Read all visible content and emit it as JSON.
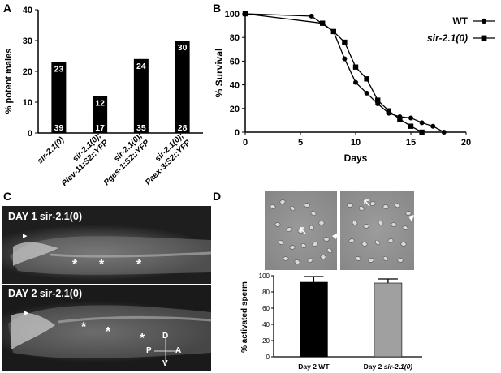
{
  "panels": {
    "a": {
      "letter": "A",
      "chart_data": {
        "type": "bar",
        "ylabel": "% potent males",
        "ylim": [
          0,
          40
        ],
        "yticks": [
          "0",
          "10",
          "20",
          "30",
          "40"
        ],
        "categories": [
          {
            "line1": "sir-2.1(0)",
            "line2": ""
          },
          {
            "line1": "sir-2.1(0);",
            "line2": "Plev-11:S2::YFP"
          },
          {
            "line1": "sir-2.1(0);",
            "line2": "Pges-1:S2::YFP"
          },
          {
            "line1": "sir-2.1(0);",
            "line2": "Paex-3:S2::YFP"
          }
        ],
        "values": [
          23,
          12,
          24,
          30
        ],
        "top_labels": [
          "23",
          "12",
          "24",
          "30"
        ],
        "bottom_labels": [
          "39",
          "17",
          "35",
          "28"
        ],
        "bar_color": "#000000"
      }
    },
    "b": {
      "letter": "B",
      "chart_data": {
        "type": "line",
        "xlabel": "Days",
        "ylabel": "% Survival",
        "xlim": [
          0,
          20
        ],
        "ylim": [
          0,
          100
        ],
        "xticks": [
          "0",
          "5",
          "10",
          "15",
          "20"
        ],
        "yticks": [
          "0",
          "20",
          "40",
          "60",
          "80",
          "100"
        ],
        "series": [
          {
            "name": "WT",
            "marker": "circle",
            "x": [
              0,
              6,
              8,
              9,
              10,
              11,
              12,
              13,
              14,
              15,
              16,
              17,
              18
            ],
            "y": [
              100,
              98,
              85,
              62,
              42,
              33,
              24,
              16,
              13,
              12,
              8,
              5,
              0
            ]
          },
          {
            "name": "sir-2.1(0)",
            "marker": "square",
            "x": [
              0,
              7,
              8,
              9,
              10,
              11,
              12,
              13,
              14,
              15,
              16
            ],
            "y": [
              100,
              92,
              85,
              76,
              55,
              45,
              27,
              18,
              11,
              5,
              0
            ]
          }
        ]
      }
    },
    "c": {
      "letter": "C",
      "top_label": "DAY 1 sir-2.1(0)",
      "bottom_label": "DAY 2 sir-2.1(0)",
      "asterisk": "*",
      "arrowhead": "▸",
      "axes": {
        "d": "D",
        "p": "P",
        "a": "A",
        "v": "V"
      }
    },
    "d": {
      "letter": "D",
      "chart_data": {
        "type": "bar",
        "ylabel": "% activated sperm",
        "ylim": [
          0,
          100
        ],
        "yticks": [
          "0",
          "20",
          "40",
          "60",
          "80",
          "100"
        ],
        "categories": [
          "Day 2 WT",
          "Day 2 sir-2.1(0)"
        ],
        "values": [
          92,
          91
        ],
        "errors": [
          7,
          5
        ],
        "colors": [
          "#000000",
          "#a0a0a0"
        ]
      }
    }
  }
}
